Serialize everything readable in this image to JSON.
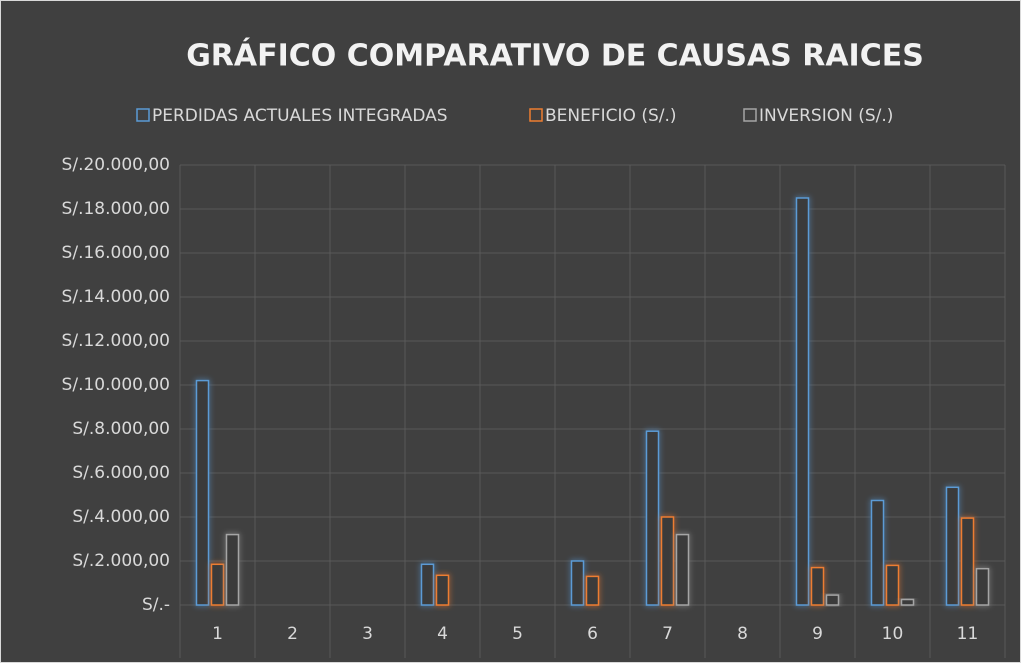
{
  "chart_data": {
    "type": "bar",
    "title": "GRÁFICO COMPARATIVO DE CAUSAS RAICES",
    "categories": [
      "1",
      "2",
      "3",
      "4",
      "5",
      "6",
      "7",
      "8",
      "9",
      "10",
      "11"
    ],
    "series": [
      {
        "name": "PERDIDAS ACTUALES INTEGRADAS",
        "color": "#5b9bd5",
        "values": [
          10200,
          null,
          null,
          1850,
          null,
          2000,
          7900,
          null,
          18500,
          4750,
          5350
        ]
      },
      {
        "name": "BENEFICIO (S/.)",
        "color": "#ed7d31",
        "values": [
          1850,
          null,
          null,
          1350,
          null,
          1300,
          4000,
          null,
          1700,
          1800,
          3950
        ]
      },
      {
        "name": "INVERSION (S/.)",
        "color": "#a5a5a5",
        "values": [
          3200,
          null,
          null,
          null,
          null,
          null,
          3200,
          null,
          450,
          250,
          1650
        ]
      }
    ],
    "ylim": [
      0,
      20000
    ],
    "yticks": [
      {
        "value": 0,
        "label": "S/.-"
      },
      {
        "value": 2000,
        "label": "S/.2.000,00"
      },
      {
        "value": 4000,
        "label": "S/.4.000,00"
      },
      {
        "value": 6000,
        "label": "S/.6.000,00"
      },
      {
        "value": 8000,
        "label": "S/.8.000,00"
      },
      {
        "value": 10000,
        "label": "S/.10.000,00"
      },
      {
        "value": 12000,
        "label": "S/.12.000,00"
      },
      {
        "value": 14000,
        "label": "S/.14.000,00"
      },
      {
        "value": 16000,
        "label": "S/.16.000,00"
      },
      {
        "value": 18000,
        "label": "S/.18.000,00"
      },
      {
        "value": 20000,
        "label": "S/.20.000,00"
      }
    ],
    "grid": true,
    "legend": "top"
  }
}
